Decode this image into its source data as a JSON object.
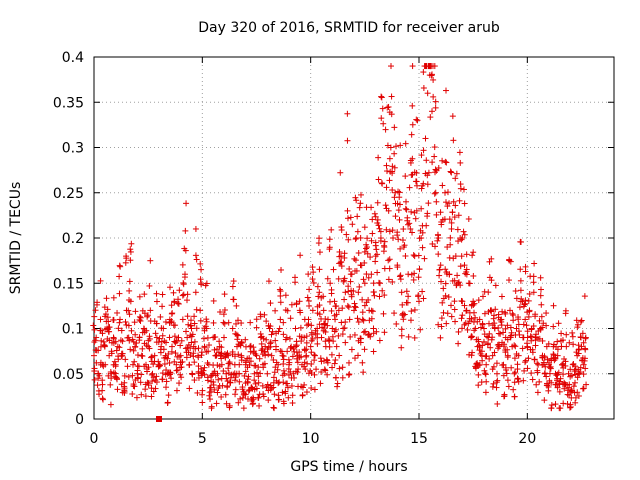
{
  "chart_data": {
    "type": "scatter",
    "title": "Day 320 of 2016, SRMTID for receiver arub",
    "xlabel": "GPS time / hours",
    "ylabel": "SRMTID / TECUs",
    "xlim": [
      0,
      24
    ],
    "ylim": [
      0,
      0.4
    ],
    "xticks": [
      0,
      5,
      10,
      15,
      20
    ],
    "xtick_labels": [
      "0",
      "5",
      "10",
      "15",
      "20"
    ],
    "yticks": [
      0,
      0.05,
      0.1,
      0.15,
      0.2,
      0.25,
      0.3,
      0.35,
      0.4
    ],
    "ytick_labels": [
      "0",
      "0.05",
      "0.1",
      "0.15",
      "0.2",
      "0.25",
      "0.3",
      "0.35",
      "0.4"
    ],
    "grid": true,
    "marker": "plus",
    "series": [
      {
        "name": "SRMTID",
        "color": "#e00000",
        "points": [
          [
            0.0,
            0.07
          ],
          [
            0.1,
            0.09
          ],
          [
            0.2,
            0.05
          ],
          [
            0.3,
            0.11
          ],
          [
            0.4,
            0.06
          ],
          [
            0.5,
            0.08
          ],
          [
            0.6,
            0.1
          ],
          [
            0.7,
            0.07
          ],
          [
            0.8,
            0.05
          ],
          [
            0.9,
            0.09
          ],
          [
            1.0,
            0.06
          ],
          [
            1.1,
            0.08
          ],
          [
            1.2,
            0.11
          ],
          [
            1.3,
            0.07
          ],
          [
            1.4,
            0.04
          ],
          [
            1.5,
            0.12
          ],
          [
            1.6,
            0.09
          ],
          [
            1.7,
            0.13
          ],
          [
            1.8,
            0.06
          ],
          [
            1.9,
            0.08
          ],
          [
            2.0,
            0.05
          ],
          [
            2.1,
            0.09
          ],
          [
            2.2,
            0.07
          ],
          [
            2.3,
            0.1
          ],
          [
            2.4,
            0.06
          ],
          [
            2.5,
            0.08
          ],
          [
            2.6,
            0.12
          ],
          [
            2.7,
            0.05
          ],
          [
            2.8,
            0.07
          ],
          [
            2.9,
            0.09
          ],
          [
            3.0,
            0.06
          ],
          [
            3.1,
            0.08
          ],
          [
            3.2,
            0.1
          ],
          [
            3.3,
            0.07
          ],
          [
            3.4,
            0.05
          ],
          [
            3.5,
            0.11
          ],
          [
            3.6,
            0.08
          ],
          [
            3.7,
            0.13
          ],
          [
            3.8,
            0.06
          ],
          [
            3.9,
            0.09
          ],
          [
            4.0,
            0.07
          ],
          [
            4.1,
            0.11
          ],
          [
            4.2,
            0.16
          ],
          [
            4.3,
            0.09
          ],
          [
            4.4,
            0.06
          ],
          [
            4.5,
            0.1
          ],
          [
            4.6,
            0.08
          ],
          [
            4.7,
            0.14
          ],
          [
            4.8,
            0.07
          ],
          [
            4.9,
            0.12
          ],
          [
            5.0,
            0.05
          ],
          [
            5.1,
            0.08
          ],
          [
            5.2,
            0.1
          ],
          [
            5.3,
            0.06
          ],
          [
            5.4,
            0.03
          ],
          [
            5.5,
            0.09
          ],
          [
            5.6,
            0.07
          ],
          [
            5.7,
            0.05
          ],
          [
            5.8,
            0.08
          ],
          [
            5.9,
            0.06
          ],
          [
            6.0,
            0.09
          ],
          [
            6.1,
            0.05
          ],
          [
            6.2,
            0.07
          ],
          [
            6.3,
            0.04
          ],
          [
            6.4,
            0.1
          ],
          [
            6.5,
            0.06
          ],
          [
            6.6,
            0.08
          ],
          [
            6.7,
            0.05
          ],
          [
            6.8,
            0.07
          ],
          [
            6.9,
            0.03
          ],
          [
            7.0,
            0.06
          ],
          [
            7.1,
            0.04
          ],
          [
            7.2,
            0.08
          ],
          [
            7.3,
            0.02
          ],
          [
            7.4,
            0.05
          ],
          [
            7.5,
            0.07
          ],
          [
            7.6,
            0.04
          ],
          [
            7.7,
            0.09
          ],
          [
            7.8,
            0.06
          ],
          [
            7.9,
            0.08
          ],
          [
            8.0,
            0.05
          ],
          [
            8.1,
            0.1
          ],
          [
            8.2,
            0.07
          ],
          [
            8.3,
            0.04
          ],
          [
            8.4,
            0.08
          ],
          [
            8.5,
            0.06
          ],
          [
            8.6,
            0.11
          ],
          [
            8.7,
            0.07
          ],
          [
            8.8,
            0.05
          ],
          [
            8.9,
            0.09
          ],
          [
            9.0,
            0.06
          ],
          [
            9.1,
            0.08
          ],
          [
            9.2,
            0.05
          ],
          [
            9.3,
            0.1
          ],
          [
            9.4,
            0.07
          ],
          [
            9.5,
            0.12
          ],
          [
            9.6,
            0.06
          ],
          [
            9.7,
            0.09
          ],
          [
            9.8,
            0.07
          ],
          [
            9.9,
            0.11
          ],
          [
            10.0,
            0.08
          ],
          [
            10.1,
            0.12
          ],
          [
            10.2,
            0.07
          ],
          [
            10.3,
            0.1
          ],
          [
            10.4,
            0.14
          ],
          [
            10.5,
            0.09
          ],
          [
            10.6,
            0.12
          ],
          [
            10.7,
            0.08
          ],
          [
            10.8,
            0.11
          ],
          [
            10.9,
            0.15
          ],
          [
            11.0,
            0.1
          ],
          [
            11.1,
            0.13
          ],
          [
            11.2,
            0.08
          ],
          [
            11.3,
            0.12
          ],
          [
            11.4,
            0.18
          ],
          [
            11.5,
            0.1
          ],
          [
            11.6,
            0.14
          ],
          [
            11.7,
            0.23
          ],
          [
            11.8,
            0.11
          ],
          [
            11.9,
            0.16
          ],
          [
            12.0,
            0.12
          ],
          [
            12.1,
            0.2
          ],
          [
            12.2,
            0.14
          ],
          [
            12.3,
            0.17
          ],
          [
            12.4,
            0.11
          ],
          [
            12.5,
            0.15
          ],
          [
            12.6,
            0.19
          ],
          [
            12.7,
            0.12
          ],
          [
            12.8,
            0.16
          ],
          [
            12.9,
            0.1
          ],
          [
            13.0,
            0.18
          ],
          [
            13.1,
            0.22
          ],
          [
            13.2,
            0.15
          ],
          [
            13.3,
            0.26
          ],
          [
            13.4,
            0.19
          ],
          [
            13.5,
            0.28
          ],
          [
            13.6,
            0.23
          ],
          [
            13.7,
            0.3
          ],
          [
            13.8,
            0.2
          ],
          [
            13.9,
            0.25
          ],
          [
            14.0,
            0.17
          ],
          [
            14.1,
            0.22
          ],
          [
            14.2,
            0.14
          ],
          [
            14.3,
            0.19
          ],
          [
            14.4,
            0.24
          ],
          [
            14.5,
            0.16
          ],
          [
            14.6,
            0.21
          ],
          [
            14.7,
            0.27
          ],
          [
            14.8,
            0.18
          ],
          [
            14.9,
            0.23
          ],
          [
            15.0,
            0.13
          ],
          [
            15.1,
            0.2
          ],
          [
            15.2,
            0.26
          ],
          [
            15.3,
            0.31
          ],
          [
            15.4,
            0.36
          ],
          [
            15.5,
            0.38
          ],
          [
            15.6,
            0.34
          ],
          [
            15.7,
            0.29
          ],
          [
            15.8,
            0.24
          ],
          [
            15.9,
            0.2
          ],
          [
            16.0,
            0.17
          ],
          [
            16.1,
            0.22
          ],
          [
            16.2,
            0.25
          ],
          [
            16.3,
            0.19
          ],
          [
            16.4,
            0.16
          ],
          [
            16.5,
            0.21
          ],
          [
            16.6,
            0.24
          ],
          [
            16.7,
            0.18
          ],
          [
            16.8,
            0.15
          ],
          [
            16.9,
            0.2
          ],
          [
            17.0,
            0.13
          ],
          [
            17.1,
            0.17
          ],
          [
            17.2,
            0.12
          ],
          [
            17.3,
            0.15
          ],
          [
            17.4,
            0.09
          ],
          [
            17.5,
            0.13
          ],
          [
            17.6,
            0.1
          ],
          [
            17.7,
            0.08
          ],
          [
            17.8,
            0.11
          ],
          [
            17.9,
            0.07
          ],
          [
            18.0,
            0.1
          ],
          [
            18.1,
            0.06
          ],
          [
            18.2,
            0.09
          ],
          [
            18.3,
            0.12
          ],
          [
            18.4,
            0.07
          ],
          [
            18.5,
            0.1
          ],
          [
            18.6,
            0.05
          ],
          [
            18.7,
            0.08
          ],
          [
            18.8,
            0.11
          ],
          [
            18.9,
            0.06
          ],
          [
            19.0,
            0.09
          ],
          [
            19.1,
            0.07
          ],
          [
            19.2,
            0.12
          ],
          [
            19.3,
            0.08
          ],
          [
            19.4,
            0.05
          ],
          [
            19.5,
            0.1
          ],
          [
            19.6,
            0.07
          ],
          [
            19.7,
            0.13
          ],
          [
            19.8,
            0.09
          ],
          [
            19.9,
            0.11
          ],
          [
            20.0,
            0.08
          ],
          [
            20.1,
            0.12
          ],
          [
            20.2,
            0.1
          ],
          [
            20.3,
            0.14
          ],
          [
            20.4,
            0.09
          ],
          [
            20.5,
            0.06
          ],
          [
            20.6,
            0.1
          ],
          [
            20.7,
            0.07
          ],
          [
            20.8,
            0.05
          ],
          [
            20.9,
            0.08
          ],
          [
            21.0,
            0.06
          ],
          [
            21.1,
            0.04
          ],
          [
            21.2,
            0.08
          ],
          [
            21.3,
            0.05
          ],
          [
            21.4,
            0.07
          ],
          [
            21.5,
            0.03
          ],
          [
            21.6,
            0.06
          ],
          [
            21.7,
            0.04
          ],
          [
            21.8,
            0.08
          ],
          [
            21.9,
            0.05
          ],
          [
            22.0,
            0.03
          ],
          [
            22.1,
            0.06
          ],
          [
            22.2,
            0.04
          ],
          [
            22.3,
            0.07
          ],
          [
            22.4,
            0.05
          ],
          [
            22.5,
            0.08
          ],
          [
            22.6,
            0.06
          ],
          [
            22.7,
            0.09
          ]
        ]
      }
    ],
    "outlier_point": [
      3.0,
      0.0
    ]
  }
}
